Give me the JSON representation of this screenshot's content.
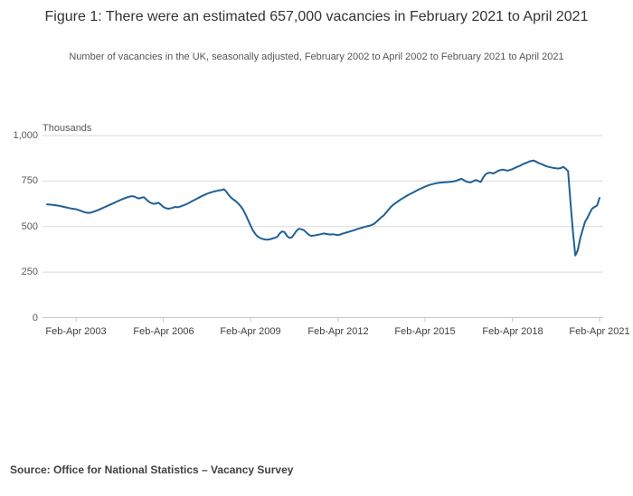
{
  "header": {
    "title": "Figure 1: There were an estimated 657,000 vacancies in February 2021 to April 2021",
    "subtitle": "Number of vacancies in the UK, seasonally adjusted, February 2002 to April 2002 to February 2021 to April 2021"
  },
  "footer": {
    "source": "Source: Office for National Statistics – Vacancy Survey"
  },
  "colors": {
    "line": "#206095",
    "grid": "#d9d9d9",
    "axis": "#c2c9d4",
    "title_text": "#333333",
    "subtitle_text": "#555555",
    "tick_label": "#414042",
    "unit_label": "#58595b",
    "background": "#ffffff"
  },
  "chart_data": {
    "type": "line",
    "title": "Figure 1: There were an estimated 657,000 vacancies in February 2021 to April 2021",
    "unit_label": "Thousands",
    "series_name": "UK vacancies, thousands, seasonally adjusted",
    "x_start_period": "Feb-Apr 2002",
    "x_end_period": "Feb-Apr 2021",
    "x_interval": "monthly (rolling 3-month periods)",
    "x_tick_labels": [
      "Feb-Apr 2003",
      "Feb-Apr 2006",
      "Feb-Apr 2009",
      "Feb-Apr 2012",
      "Feb-Apr 2015",
      "Feb-Apr 2018",
      "Feb-Apr 2021"
    ],
    "x_tick_month_indices": [
      12,
      48,
      84,
      120,
      156,
      192,
      228
    ],
    "y_tick_labels": [
      "1,000",
      "750",
      "500",
      "250",
      "0"
    ],
    "y_tick_values": [
      1000,
      750,
      500,
      250,
      0
    ],
    "ylim": [
      0,
      1000
    ],
    "grid": "horizontal",
    "legend": "none",
    "final_value": 657,
    "values": [
      622,
      621,
      620,
      618,
      616,
      614,
      611,
      608,
      605,
      602,
      599,
      597,
      595,
      591,
      586,
      581,
      577,
      575,
      576,
      580,
      585,
      590,
      596,
      602,
      608,
      614,
      620,
      626,
      632,
      638,
      644,
      650,
      655,
      660,
      664,
      667,
      665,
      658,
      654,
      659,
      661,
      648,
      636,
      629,
      625,
      627,
      631,
      620,
      608,
      601,
      598,
      600,
      604,
      608,
      606,
      610,
      615,
      620,
      626,
      633,
      640,
      647,
      654,
      661,
      668,
      674,
      680,
      685,
      689,
      693,
      696,
      699,
      700,
      705,
      692,
      673,
      658,
      648,
      638,
      625,
      610,
      590,
      565,
      535,
      505,
      478,
      458,
      444,
      437,
      432,
      429,
      428,
      430,
      434,
      438,
      443,
      462,
      473,
      470,
      448,
      438,
      440,
      458,
      477,
      488,
      485,
      480,
      468,
      455,
      449,
      450,
      453,
      455,
      458,
      462,
      460,
      458,
      456,
      458,
      455,
      453,
      456,
      461,
      465,
      469,
      473,
      477,
      481,
      486,
      490,
      494,
      498,
      501,
      504,
      509,
      515,
      527,
      539,
      552,
      562,
      578,
      594,
      609,
      621,
      631,
      640,
      649,
      657,
      665,
      673,
      680,
      687,
      694,
      701,
      707,
      713,
      719,
      724,
      729,
      733,
      736,
      739,
      741,
      742,
      743,
      744,
      745,
      747,
      749,
      752,
      758,
      763,
      755,
      747,
      744,
      743,
      750,
      756,
      750,
      745,
      770,
      787,
      794,
      796,
      791,
      797,
      805,
      810,
      813,
      810,
      807,
      811,
      815,
      822,
      828,
      833,
      840,
      846,
      851,
      857,
      861,
      862,
      855,
      848,
      843,
      837,
      832,
      828,
      825,
      822,
      820,
      819,
      821,
      828,
      818,
      805,
      637,
      476,
      341,
      370,
      434,
      480,
      525,
      548,
      576,
      599,
      608,
      616,
      657
    ]
  }
}
